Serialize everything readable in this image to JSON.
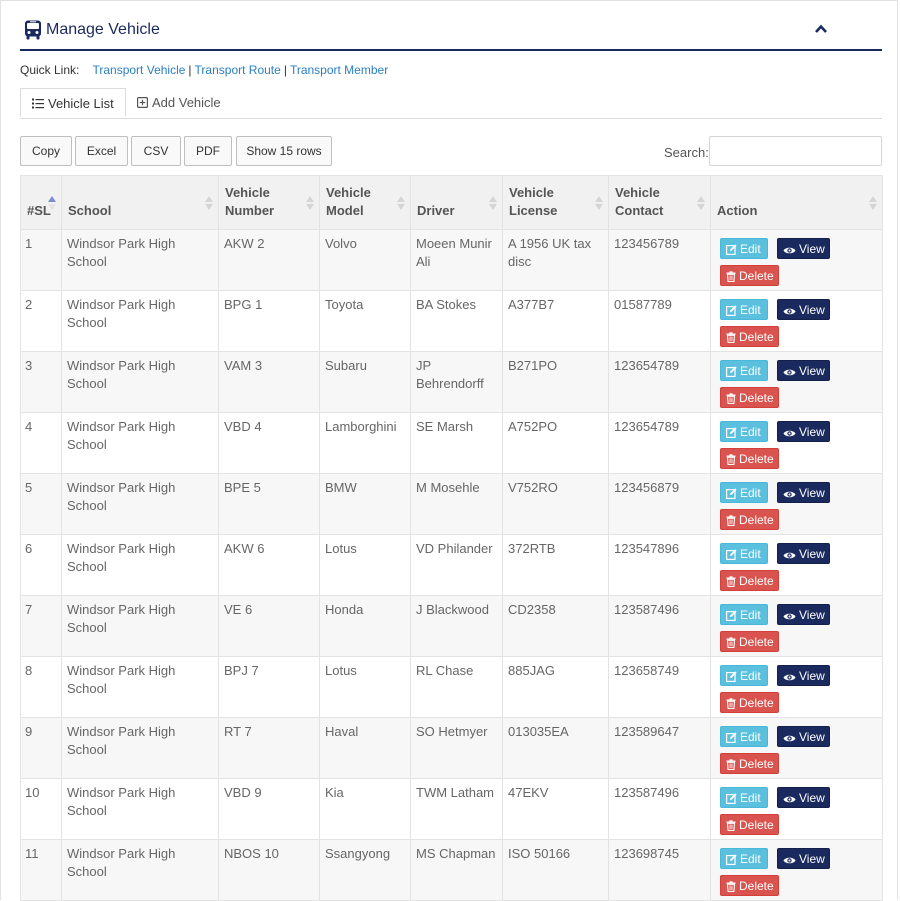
{
  "header": {
    "title": "Manage Vehicle",
    "icon": "bus-icon",
    "accent": "#1b2a5e"
  },
  "quick_links": {
    "label": "Quick Link:",
    "links": [
      "Transport Vehicle",
      "Transport Route",
      "Transport Member"
    ],
    "separator": "|"
  },
  "tabs": [
    {
      "label": "Vehicle List",
      "icon": "list-icon",
      "active": true
    },
    {
      "label": "Add Vehicle",
      "icon": "plus-square-icon",
      "active": false
    }
  ],
  "toolbar": {
    "buttons": [
      "Copy",
      "Excel",
      "CSV",
      "PDF",
      "Show 15 rows"
    ],
    "search_label": "Search:",
    "search_value": ""
  },
  "table": {
    "columns": [
      "#SL",
      "School",
      "Vehicle Number",
      "Vehicle Model",
      "Driver",
      "Vehicle License",
      "Vehicle Contact",
      "Action"
    ],
    "actions": {
      "edit": "Edit",
      "view": "View",
      "delete": "Delete"
    },
    "rows": [
      [
        "1",
        "Windsor Park High School",
        "AKW 2",
        "Volvo",
        "Moeen Munir Ali",
        "A 1956 UK tax disc",
        "123456789"
      ],
      [
        "2",
        "Windsor Park High School",
        "BPG 1",
        "Toyota",
        "BA Stokes",
        "A377B7",
        "01587789"
      ],
      [
        "3",
        "Windsor Park High School",
        "VAM 3",
        "Subaru",
        "JP Behrendorff",
        "B271PO",
        "123654789"
      ],
      [
        "4",
        "Windsor Park High School",
        "VBD 4",
        "Lamborghini",
        "SE Marsh",
        "A752PO",
        "123654789"
      ],
      [
        "5",
        "Windsor Park High School",
        "BPE 5",
        "BMW",
        "M Mosehle",
        "V752RO",
        "123456879"
      ],
      [
        "6",
        "Windsor Park High School",
        "AKW 6",
        "Lotus",
        "VD Philander",
        "372RTB",
        "123547896"
      ],
      [
        "7",
        "Windsor Park High School",
        "VE 6",
        "Honda",
        "J Blackwood",
        "CD2358",
        "123587496"
      ],
      [
        "8",
        "Windsor Park High School",
        "BPJ 7",
        "Lotus",
        "RL Chase",
        "885JAG",
        "123658749"
      ],
      [
        "9",
        "Windsor Park High School",
        "RT 7",
        "Haval",
        "SO Hetmyer",
        "013035EA",
        "123589647"
      ],
      [
        "10",
        "Windsor Park High School",
        "VBD 9",
        "Kia",
        "TWM Latham",
        "47EKV",
        "123587496"
      ],
      [
        "11",
        "Windsor Park High School",
        "NBOS 10",
        "Ssangyong",
        "MS Chapman",
        "ISO 50166",
        "123698745"
      ]
    ]
  },
  "colors": {
    "link": "#2a7fc2",
    "edit": "#5bc0de",
    "view": "#1b2a5e",
    "delete": "#d9534f"
  }
}
